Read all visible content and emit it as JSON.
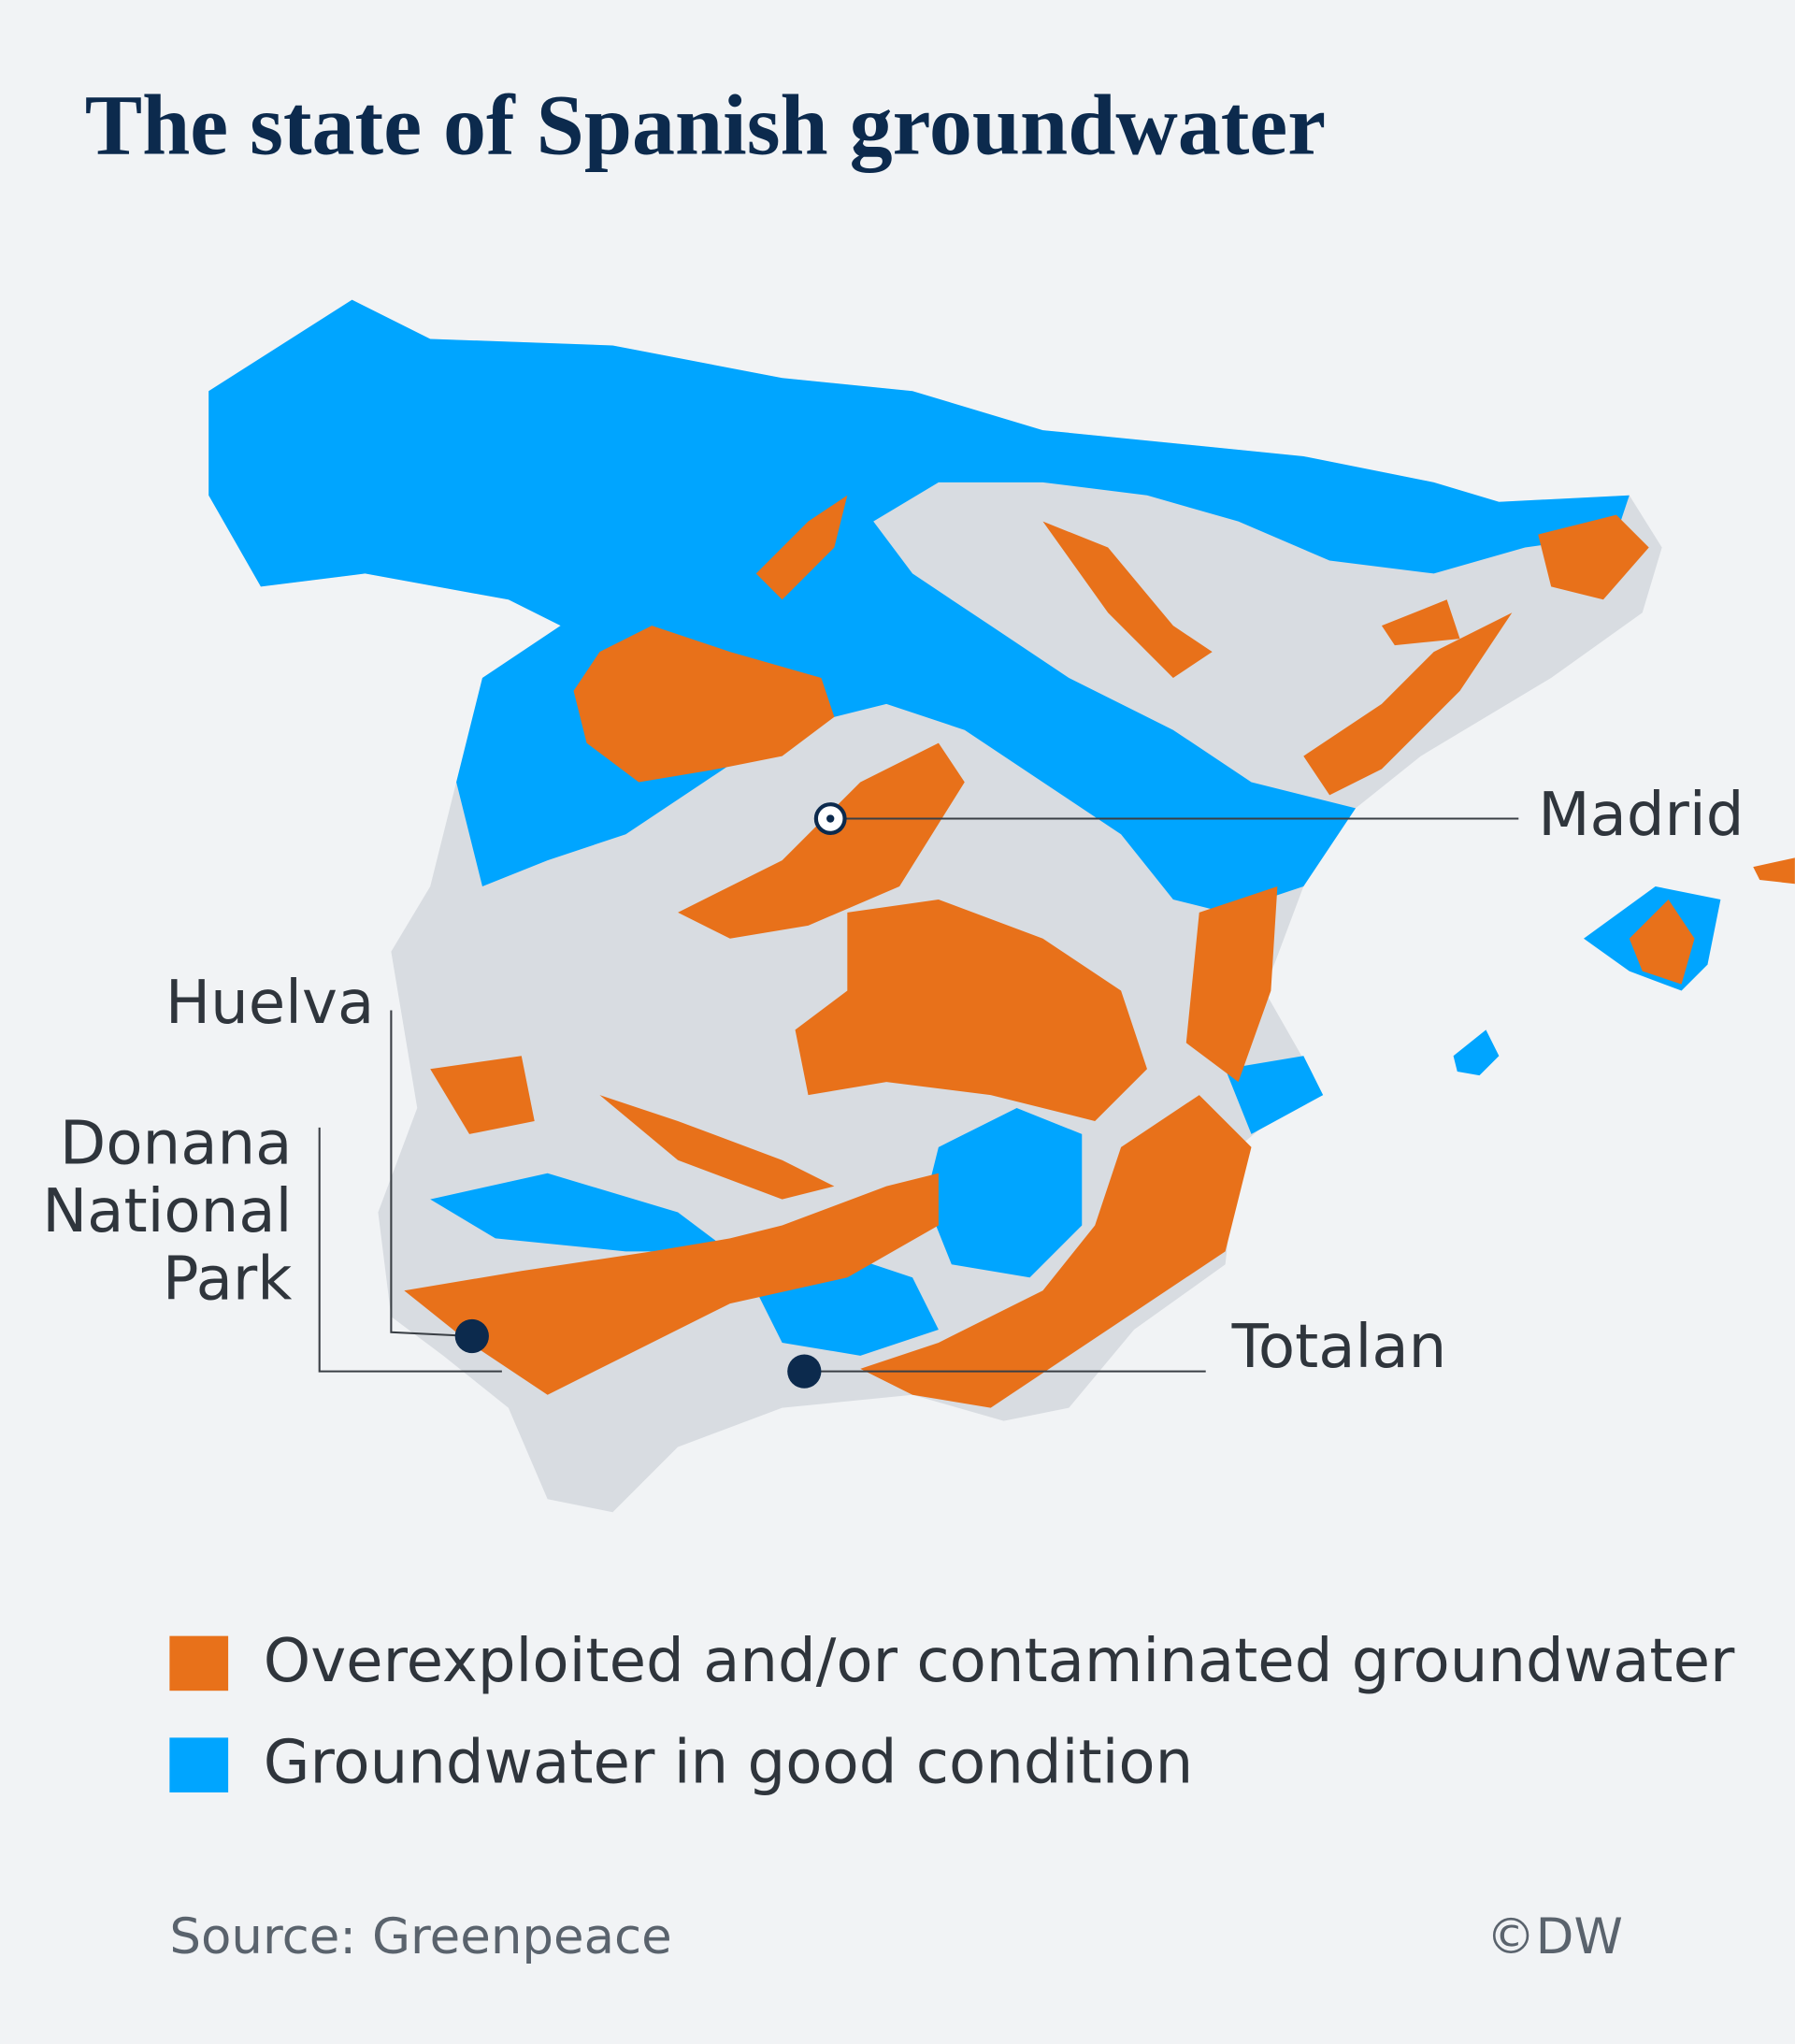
{
  "title": "The state of Spanish groundwater",
  "map": {
    "labels": {
      "madrid": "Madrid",
      "huelva": "Huelva",
      "donana": [
        "Donana",
        "National",
        "Park"
      ],
      "totalan": "Totalan"
    }
  },
  "legend": {
    "items": [
      "Overexploited and/or contaminated groundwater",
      "Groundwater in good condition"
    ]
  },
  "footer": {
    "source": "Source: Greenpeace",
    "credit": "©DW"
  }
}
